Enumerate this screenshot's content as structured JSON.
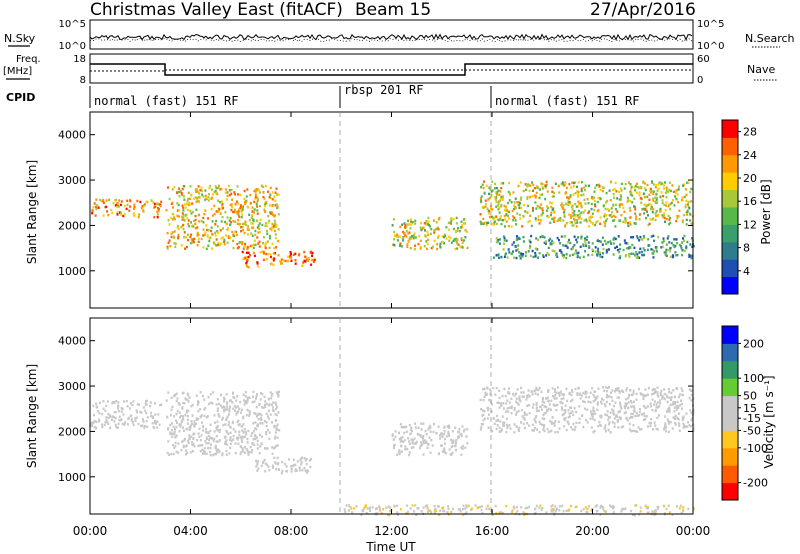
{
  "header": {
    "station": "Christmas Valley East (fitACF)",
    "beam": "Beam 15",
    "date": "27/Apr/2016"
  },
  "noise_panel": {
    "left_label": "N.Sky",
    "left_ticks": [
      "10^5",
      "10^0"
    ],
    "right_label": "N.Search",
    "right_ticks": [
      "10^5",
      "10^0"
    ]
  },
  "freq_panel": {
    "left_label_1": "Freq.",
    "left_label_2": "[MHz]",
    "left_ticks": [
      "18",
      "8"
    ],
    "right_label": "Nave",
    "right_ticks": [
      "60",
      "0"
    ]
  },
  "cpid": {
    "label": "CPID",
    "segments": [
      "normal (fast) 151 RF",
      "rbsp 201 RF",
      "normal (fast) 151 RF"
    ]
  },
  "colors": {
    "power_scale": [
      "#0000ff",
      "#1f4fb0",
      "#2e7d8e",
      "#3a9f6b",
      "#58b84a",
      "#a8c83a",
      "#ffcc00",
      "#ff9900",
      "#ff6000",
      "#ff0000"
    ],
    "velocity_scale": [
      "#ff0000",
      "#ff5a00",
      "#ff9a00",
      "#ffc820",
      "#c8c8c8",
      "#c8c8c8",
      "#66cc33",
      "#339966",
      "#2d6bb0",
      "#0000ff"
    ]
  },
  "chart_data": [
    {
      "type": "heatmap",
      "name": "power",
      "ylabel": "Slant Range [km]",
      "y_ticks": [
        "4000",
        "3000",
        "2000",
        "1000"
      ],
      "ylim": [
        180,
        4500
      ],
      "xlim": [
        0,
        24
      ],
      "x_ticks": [
        "00:00",
        "04:00",
        "08:00",
        "12:00",
        "16:00",
        "20:00",
        "00:00"
      ],
      "colorbar_label": "Power [dB]",
      "colorbar_ticks": [
        "28",
        "24",
        "20",
        "16",
        "12",
        "8",
        "4"
      ],
      "colorbar_range": [
        0,
        30
      ],
      "bands": [
        {
          "x": [
            0,
            2.8
          ],
          "range": [
            2200,
            2600
          ],
          "power": 22
        },
        {
          "x": [
            3.0,
            7.5
          ],
          "range": [
            1500,
            2900
          ],
          "power": 20
        },
        {
          "x": [
            6.0,
            9.0
          ],
          "range": [
            1100,
            1450
          ],
          "power": 24
        },
        {
          "x": [
            12.0,
            15.0
          ],
          "range": [
            1500,
            2200
          ],
          "power": 18
        },
        {
          "x": [
            15.5,
            24.0
          ],
          "range": [
            2000,
            3000
          ],
          "power": 18
        },
        {
          "x": [
            16.0,
            24.0
          ],
          "range": [
            1300,
            1800
          ],
          "power": 10
        }
      ]
    },
    {
      "type": "heatmap",
      "name": "velocity",
      "ylabel": "Slant Range [km]",
      "y_ticks": [
        "4000",
        "3000",
        "2000",
        "1000"
      ],
      "ylim": [
        180,
        4500
      ],
      "xlim": [
        0,
        24
      ],
      "x_ticks": [
        "00:00",
        "04:00",
        "08:00",
        "12:00",
        "16:00",
        "20:00",
        "00:00"
      ],
      "xlabel": "Time UT",
      "colorbar_label": "Velocity [m s⁻¹]",
      "colorbar_ticks": [
        "200",
        "100",
        "50",
        "15",
        "-15",
        "-50",
        "-100",
        "-200"
      ],
      "colorbar_range": [
        -250,
        250
      ],
      "bands": [
        {
          "x": [
            0,
            2.8
          ],
          "range": [
            2100,
            2700
          ],
          "velocity": 0
        },
        {
          "x": [
            3.0,
            7.5
          ],
          "range": [
            1500,
            2900
          ],
          "velocity": 0
        },
        {
          "x": [
            6.5,
            8.8
          ],
          "range": [
            1100,
            1450
          ],
          "velocity": 30
        },
        {
          "x": [
            12.0,
            15.0
          ],
          "range": [
            1500,
            2200
          ],
          "velocity": 0
        },
        {
          "x": [
            15.5,
            24.0
          ],
          "range": [
            2000,
            3000
          ],
          "velocity": 0
        },
        {
          "x": [
            10.0,
            24.0
          ],
          "range": [
            180,
            400
          ],
          "velocity": -40
        }
      ]
    }
  ]
}
